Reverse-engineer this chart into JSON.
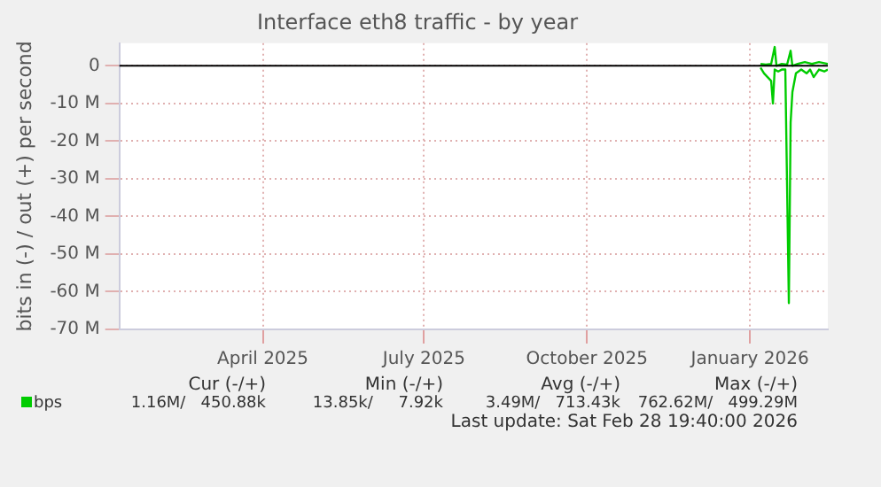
{
  "chart_data": {
    "type": "line",
    "title": "Interface eth8 traffic - by year",
    "ylabel": "bits in (-) / out (+) per second",
    "xlim": [
      "2025-01-24",
      "2026-02-28"
    ],
    "xticks": [
      {
        "value": "2025-04-15",
        "label": "April 2025"
      },
      {
        "value": "2025-07-15",
        "label": "July 2025"
      },
      {
        "value": "2025-10-15",
        "label": "October 2025"
      },
      {
        "value": "2026-01-15",
        "label": "January 2026"
      }
    ],
    "ylim": [
      -70,
      6
    ],
    "yticks": [
      {
        "value": -70,
        "label": "-70 M"
      },
      {
        "value": -60,
        "label": "-60 M"
      },
      {
        "value": -50,
        "label": "-50 M"
      },
      {
        "value": -40,
        "label": "-40 M"
      },
      {
        "value": -30,
        "label": "-30 M"
      },
      {
        "value": -20,
        "label": "-20 M"
      },
      {
        "value": -10,
        "label": "-10 M"
      },
      {
        "value": 0,
        "label": "0"
      }
    ],
    "grid": true,
    "legend": "bottom",
    "series": [
      {
        "name": "bps",
        "color": "#00cc00",
        "x": [
          "2026-01-21",
          "2026-01-23",
          "2026-01-25",
          "2026-01-27",
          "2026-01-28",
          "2026-01-29",
          "2026-01-31",
          "2026-02-02",
          "2026-02-04",
          "2026-02-06",
          "2026-02-07",
          "2026-02-08",
          "2026-02-10",
          "2026-02-13",
          "2026-02-16",
          "2026-02-18",
          "2026-02-20",
          "2026-02-23",
          "2026-02-26",
          "2026-02-28"
        ],
        "values": [
          -0.5,
          -2,
          -3,
          -4,
          -10,
          -1,
          -1.5,
          -1,
          -1,
          -63,
          -15,
          -7,
          -2,
          -1,
          -2,
          -1,
          -3,
          -1,
          -1.5,
          -1
        ]
      },
      {
        "color": "#00cc00",
        "x": [
          "2026-01-21",
          "2026-01-24",
          "2026-01-27",
          "2026-01-29",
          "2026-01-30",
          "2026-02-02",
          "2026-02-05",
          "2026-02-07",
          "2026-02-08",
          "2026-02-11",
          "2026-02-15",
          "2026-02-19",
          "2026-02-23",
          "2026-02-28"
        ],
        "values": [
          0.5,
          0.3,
          0.5,
          5,
          0,
          0.5,
          0.3,
          4,
          0,
          0.5,
          1,
          0.5,
          1,
          0.5
        ]
      }
    ],
    "ref_lines": [
      {
        "axis": "y",
        "value": 0,
        "color": "#000000"
      }
    ],
    "annotations": [
      "Cur (-/+)",
      "Min (-/+)",
      "Avg (-/+)",
      "Max (-/+)",
      "1.16M/   450.88k",
      "13.85k/     7.92k",
      "3.49M/   713.43k",
      "762.62M/   499.29M",
      "Last update: Sat Feb 28 19:40:00 2026"
    ]
  }
}
